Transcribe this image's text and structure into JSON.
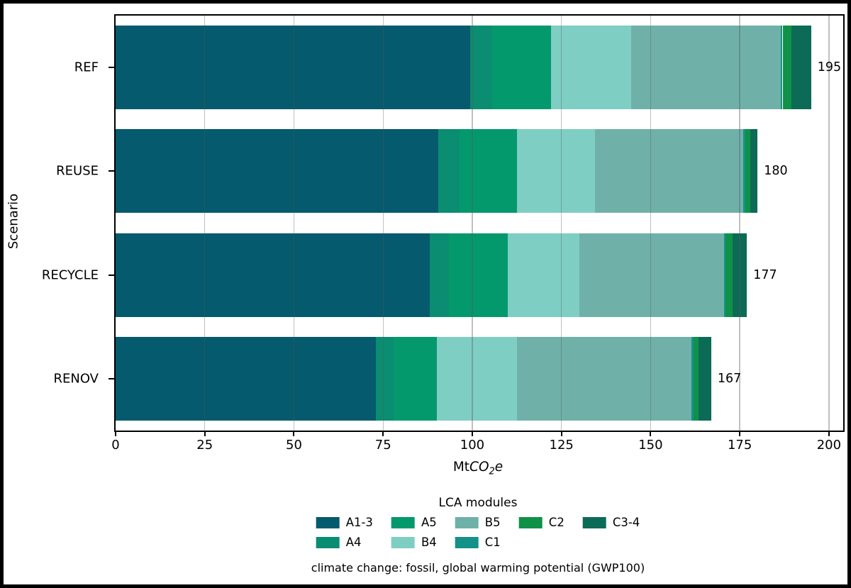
{
  "figure": {
    "ylabel": "Scenario",
    "xlabel_prefix": "Mt",
    "xlabel_italic": "CO",
    "xlabel_sub": "2",
    "xlabel_suffix": "e",
    "legend_title": "LCA modules",
    "caption": "climate change: fossil, global warming potential (GWP100)"
  },
  "chart_data": {
    "type": "bar",
    "orientation": "horizontal",
    "stacked": true,
    "title": "",
    "xlabel": "MtCO2e",
    "ylabel": "Scenario",
    "categories": [
      "REF",
      "REUSE",
      "RECYCLE",
      "RENOV"
    ],
    "totals": [
      195,
      180,
      177,
      167
    ],
    "xlim": [
      0,
      204
    ],
    "xticks": [
      0,
      25,
      50,
      75,
      100,
      125,
      150,
      175,
      200
    ],
    "grid": true,
    "grid_color": "#5a5a5a",
    "legend_position": "below-center",
    "legend_title": "LCA modules",
    "series": [
      {
        "name": "A1-3",
        "color": "#055a6d",
        "values": [
          99.5,
          90.5,
          88.0,
          73.0
        ]
      },
      {
        "name": "A4",
        "color": "#0a8d71",
        "values": [
          6.0,
          6.0,
          5.5,
          5.0
        ]
      },
      {
        "name": "A5",
        "color": "#03996d",
        "values": [
          16.5,
          16.0,
          16.5,
          12.0
        ]
      },
      {
        "name": "B4",
        "color": "#7fcec3",
        "values": [
          22.5,
          22.0,
          20.0,
          22.5
        ]
      },
      {
        "name": "B5",
        "color": "#6fb1a9",
        "values": [
          42.0,
          41.5,
          40.5,
          49.0
        ]
      },
      {
        "name": "C1",
        "color": "#149189",
        "values": [
          0.5,
          0.5,
          0.5,
          0.5
        ]
      },
      {
        "name": "C2",
        "color": "#0f9148",
        "values": [
          2.5,
          1.5,
          2.0,
          1.5
        ]
      },
      {
        "name": "C3-4",
        "color": "#0c6b56",
        "values": [
          5.5,
          2.0,
          4.0,
          3.5
        ]
      }
    ],
    "legend_columns": [
      [
        "A1-3",
        "A4"
      ],
      [
        "A5",
        "B4"
      ],
      [
        "B5",
        "C1"
      ],
      [
        "C2"
      ],
      [
        "C3-4"
      ]
    ]
  }
}
